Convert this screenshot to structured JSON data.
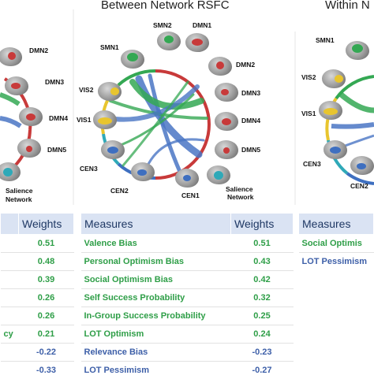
{
  "panels": {
    "between": {
      "title": "Between Network RSFC",
      "labels": {
        "smn2": "SMN2",
        "dmn1": "DMN1",
        "smn1": "SMN1",
        "dmn2": "DMN2",
        "vis2": "VIS2",
        "dmn3": "DMN3",
        "vis1": "VIS1",
        "dmn4": "DMN4",
        "dmn5": "DMN5",
        "cen3": "CEN3",
        "cen2": "CEN2",
        "cen1": "CEN1",
        "salience_1": "Salience",
        "salience_2": "Network"
      }
    },
    "within": {
      "title": "Within N",
      "labels": {
        "smn1": "SMN1",
        "vis2": "VIS2",
        "vis1": "VIS1",
        "cen3": "CEN3",
        "cen2": "CEN2"
      }
    },
    "left": {
      "labels": {
        "dmn2": "DMN2",
        "dmn3": "DMN3",
        "dmn4": "DMN4",
        "dmn5": "DMN5",
        "salience_1": "Salience",
        "salience_2": "Network"
      }
    }
  },
  "tables": {
    "left": {
      "header_weights": "Weights",
      "rows": [
        {
          "measure": "",
          "weight": "0.51",
          "color": "#2e9e47"
        },
        {
          "measure": "",
          "weight": "0.48",
          "color": "#2e9e47"
        },
        {
          "measure": "",
          "weight": "0.39",
          "color": "#2e9e47"
        },
        {
          "measure": "",
          "weight": "0.26",
          "color": "#2e9e47"
        },
        {
          "measure": "",
          "weight": "0.26",
          "color": "#2e9e47"
        },
        {
          "measure": "cy",
          "weight": "0.21",
          "color": "#2e9e47"
        },
        {
          "measure": "",
          "weight": "-0.22",
          "color": "#3d5fa8"
        },
        {
          "measure": "",
          "weight": "-0.33",
          "color": "#3d5fa8"
        }
      ]
    },
    "middle": {
      "header_measures": "Measures",
      "header_weights": "Weights",
      "rows": [
        {
          "measure": "Valence Bias",
          "weight": "0.51",
          "color": "#2e9e47"
        },
        {
          "measure": "Personal Optimism Bias",
          "weight": "0.43",
          "color": "#2e9e47"
        },
        {
          "measure": "Social Optimism Bias",
          "weight": "0.42",
          "color": "#2e9e47"
        },
        {
          "measure": "Self Success Probability",
          "weight": "0.32",
          "color": "#2e9e47"
        },
        {
          "measure": "In-Group Success Probability",
          "weight": "0.25",
          "color": "#2e9e47"
        },
        {
          "measure": "LOT Optimism",
          "weight": "0.24",
          "color": "#2e9e47"
        },
        {
          "measure": "Relevance Bias",
          "weight": "-0.23",
          "color": "#3d5fa8"
        },
        {
          "measure": "LOT Pessimism",
          "weight": "-0.27",
          "color": "#3d5fa8"
        }
      ]
    },
    "right": {
      "header_measures": "Measures",
      "rows": [
        {
          "measure": "Social Optimis",
          "color": "#2e9e47"
        },
        {
          "measure": "LOT Pessimism",
          "color": "#3d5fa8"
        }
      ]
    }
  },
  "colors": {
    "arc_green": "#34a853",
    "arc_blue": "#4a76c4",
    "ring_red": "#c83a3a",
    "ring_yellow": "#e8c52e",
    "ring_blue": "#3e6fc0",
    "ring_cyan": "#2fa9b8",
    "header_bg": "#dae3f3"
  }
}
